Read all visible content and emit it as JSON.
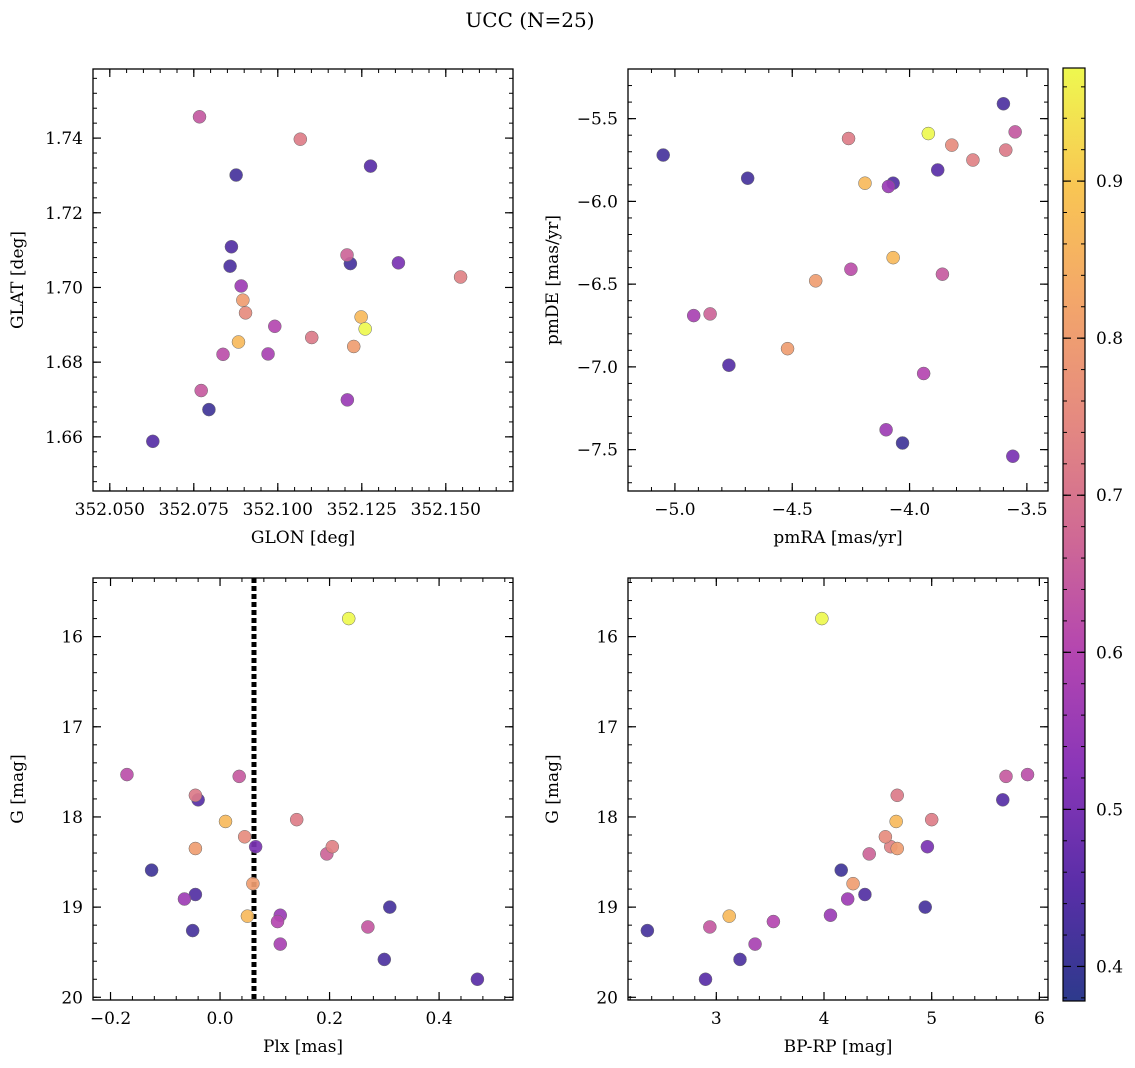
{
  "figure": {
    "title": "UCC (N=25)"
  },
  "colorbar": {
    "colormap": "plasma",
    "range": [
      0.378,
      0.972
    ],
    "ticks": [
      0.4,
      0.5,
      0.6,
      0.7,
      0.8,
      0.9
    ],
    "tick_labels": [
      "0.4",
      "0.5",
      "0.6",
      "0.7",
      "0.8",
      "0.9"
    ]
  },
  "stars": [
    {
      "glon": 352.0628,
      "glat": 1.6588,
      "pmra": -4.77,
      "pmde": -6.99,
      "plx": -0.04,
      "g": 17.81,
      "bprp": 5.66,
      "prob": 0.445
    },
    {
      "glon": 352.0767,
      "glat": 1.7457,
      "pmra": -3.55,
      "pmde": -5.58,
      "plx": 0.27,
      "g": 19.22,
      "bprp": 2.94,
      "prob": 0.64
    },
    {
      "glon": 352.0772,
      "glat": 1.6724,
      "pmra": -3.86,
      "pmde": -6.44,
      "plx": 0.035,
      "g": 17.55,
      "bprp": 5.69,
      "prob": 0.645
    },
    {
      "glon": 352.0795,
      "glat": 1.6673,
      "pmra": -4.03,
      "pmde": -7.46,
      "plx": -0.125,
      "g": 18.59,
      "bprp": 4.16,
      "prob": 0.41
    },
    {
      "glon": 352.0837,
      "glat": 1.6821,
      "pmra": -4.25,
      "pmde": -6.41,
      "plx": -0.17,
      "g": 17.53,
      "bprp": 5.89,
      "prob": 0.62
    },
    {
      "glon": 352.0858,
      "glat": 1.7057,
      "pmra": -3.6,
      "pmde": -5.41,
      "plx": 0.3,
      "g": 19.58,
      "bprp": 3.22,
      "prob": 0.43
    },
    {
      "glon": 352.0862,
      "glat": 1.7109,
      "pmra": -4.07,
      "pmde": -5.89,
      "plx": -0.045,
      "g": 18.86,
      "bprp": 4.38,
      "prob": 0.44
    },
    {
      "glon": 352.0876,
      "glat": 1.7301,
      "pmra": -5.05,
      "pmde": -5.72,
      "plx": 0.31,
      "g": 19.0,
      "bprp": 4.94,
      "prob": 0.42
    },
    {
      "glon": 352.0883,
      "glat": 1.6854,
      "pmra": -4.19,
      "pmde": -5.89,
      "plx": 0.01,
      "g": 18.05,
      "bprp": 4.67,
      "prob": 0.87
    },
    {
      "glon": 352.0891,
      "glat": 1.7004,
      "pmra": -4.1,
      "pmde": -7.38,
      "plx": -0.065,
      "g": 18.91,
      "bprp": 4.22,
      "prob": 0.56
    },
    {
      "glon": 352.0896,
      "glat": 1.6966,
      "pmra": -4.52,
      "pmde": -6.89,
      "plx": 0.06,
      "g": 18.74,
      "bprp": 4.27,
      "prob": 0.8
    },
    {
      "glon": 352.0904,
      "glat": 1.6932,
      "pmra": -3.82,
      "pmde": -5.66,
      "plx": 0.045,
      "g": 18.22,
      "bprp": 4.57,
      "prob": 0.755
    },
    {
      "glon": 352.0971,
      "glat": 1.6822,
      "pmra": -4.92,
      "pmde": -6.69,
      "plx": 0.11,
      "g": 19.41,
      "bprp": 3.36,
      "prob": 0.58
    },
    {
      "glon": 352.0991,
      "glat": 1.6896,
      "pmra": -3.94,
      "pmde": -7.04,
      "plx": 0.105,
      "g": 19.16,
      "bprp": 3.53,
      "prob": 0.6
    },
    {
      "glon": 352.1067,
      "glat": 1.7397,
      "pmra": -4.26,
      "pmde": -5.62,
      "plx": 0.14,
      "g": 18.03,
      "bprp": 5.0,
      "prob": 0.72
    },
    {
      "glon": 352.1101,
      "glat": 1.6866,
      "pmra": -3.59,
      "pmde": -5.69,
      "plx": -0.045,
      "g": 17.76,
      "bprp": 4.68,
      "prob": 0.715
    },
    {
      "glon": 352.1206,
      "glat": 1.7087,
      "pmra": -4.85,
      "pmde": -6.68,
      "plx": 0.195,
      "g": 18.41,
      "bprp": 4.42,
      "prob": 0.665
    },
    {
      "glon": 352.1207,
      "glat": 1.6699,
      "pmra": -4.09,
      "pmde": -5.91,
      "plx": 0.11,
      "g": 19.09,
      "bprp": 4.06,
      "prob": 0.555
    },
    {
      "glon": 352.1216,
      "glat": 1.7064,
      "pmra": -4.69,
      "pmde": -5.86,
      "plx": -0.05,
      "g": 19.26,
      "bprp": 2.36,
      "prob": 0.42
    },
    {
      "glon": 352.1226,
      "glat": 1.6842,
      "pmra": -4.4,
      "pmde": -6.48,
      "plx": -0.045,
      "g": 18.35,
      "bprp": 4.68,
      "prob": 0.8
    },
    {
      "glon": 352.1248,
      "glat": 1.6921,
      "pmra": -4.07,
      "pmde": -6.34,
      "plx": 0.05,
      "g": 19.1,
      "bprp": 3.12,
      "prob": 0.87
    },
    {
      "glon": 352.126,
      "glat": 1.6889,
      "pmra": -3.92,
      "pmde": -5.59,
      "plx": 0.235,
      "g": 15.8,
      "bprp": 3.98,
      "prob": 0.972
    },
    {
      "glon": 352.1276,
      "glat": 1.7325,
      "pmra": -3.88,
      "pmde": -5.81,
      "plx": 0.47,
      "g": 19.8,
      "bprp": 2.9,
      "prob": 0.45
    },
    {
      "glon": 352.1359,
      "glat": 1.7066,
      "pmra": -3.56,
      "pmde": -7.54,
      "plx": 0.065,
      "g": 18.33,
      "bprp": 4.96,
      "prob": 0.5
    },
    {
      "glon": 352.1544,
      "glat": 1.7028,
      "pmra": -3.73,
      "pmde": -5.75,
      "plx": 0.205,
      "g": 18.33,
      "bprp": 4.62,
      "prob": 0.73
    }
  ],
  "chart_data": [
    {
      "type": "scatter",
      "xlabel": "GLON [deg]",
      "ylabel": "GLAT [deg]",
      "xlim": [
        352.045,
        352.17
      ],
      "ylim": [
        1.6455,
        1.7585
      ],
      "xfield": "glon",
      "yfield": "glat",
      "xticks": [
        352.05,
        352.075,
        352.1,
        352.125,
        352.15
      ],
      "xtick_labels": [
        "352.050",
        "352.075",
        "352.100",
        "352.125",
        "352.150"
      ],
      "xminor": 0.005,
      "yticks": [
        1.66,
        1.68,
        1.7,
        1.72,
        1.74
      ],
      "ytick_labels": [
        "1.66",
        "1.68",
        "1.70",
        "1.72",
        "1.74"
      ],
      "yminor": 0.004,
      "yinverted": false
    },
    {
      "type": "scatter",
      "xlabel": "pmRA [mas/yr]",
      "ylabel": "pmDE [mas/yr]",
      "xlim": [
        -5.2,
        -3.41
      ],
      "ylim": [
        -7.75,
        -5.2
      ],
      "xfield": "pmra",
      "yfield": "pmde",
      "xticks": [
        -5.0,
        -4.5,
        -4.0,
        -3.5
      ],
      "xtick_labels": [
        "−5.0",
        "−4.5",
        "−4.0",
        "−3.5"
      ],
      "xminor": 0.1,
      "yticks": [
        -7.5,
        -7.0,
        -6.5,
        -6.0,
        -5.5
      ],
      "ytick_labels": [
        "−7.5",
        "−7.0",
        "−6.5",
        "−6.0",
        "−5.5"
      ],
      "yminor": 0.1,
      "yinverted": false
    },
    {
      "type": "scatter",
      "xlabel": "Plx [mas]",
      "ylabel": "G [mag]",
      "xlim": [
        -0.232,
        0.535
      ],
      "ylim": [
        20.03,
        15.35
      ],
      "xfield": "plx",
      "yfield": "g",
      "xticks": [
        -0.2,
        0.0,
        0.2,
        0.4
      ],
      "xtick_labels": [
        "−0.2",
        "0.0",
        "0.2",
        "0.4"
      ],
      "xminor": 0.04,
      "yticks": [
        16,
        17,
        18,
        19,
        20
      ],
      "ytick_labels": [
        "16",
        "17",
        "18",
        "19",
        "20"
      ],
      "yminor": 0.2,
      "yinverted": true,
      "vline": 0.062
    },
    {
      "type": "scatter",
      "xlabel": "BP-RP [mag]",
      "ylabel": "G [mag]",
      "xlim": [
        2.18,
        6.08
      ],
      "ylim": [
        20.03,
        15.35
      ],
      "xfield": "bprp",
      "yfield": "g",
      "xticks": [
        3,
        4,
        5,
        6
      ],
      "xtick_labels": [
        "3",
        "4",
        "5",
        "6"
      ],
      "xminor": 0.2,
      "yticks": [
        16,
        17,
        18,
        19,
        20
      ],
      "ytick_labels": [
        "16",
        "17",
        "18",
        "19",
        "20"
      ],
      "yminor": 0.2,
      "yinverted": true
    }
  ]
}
